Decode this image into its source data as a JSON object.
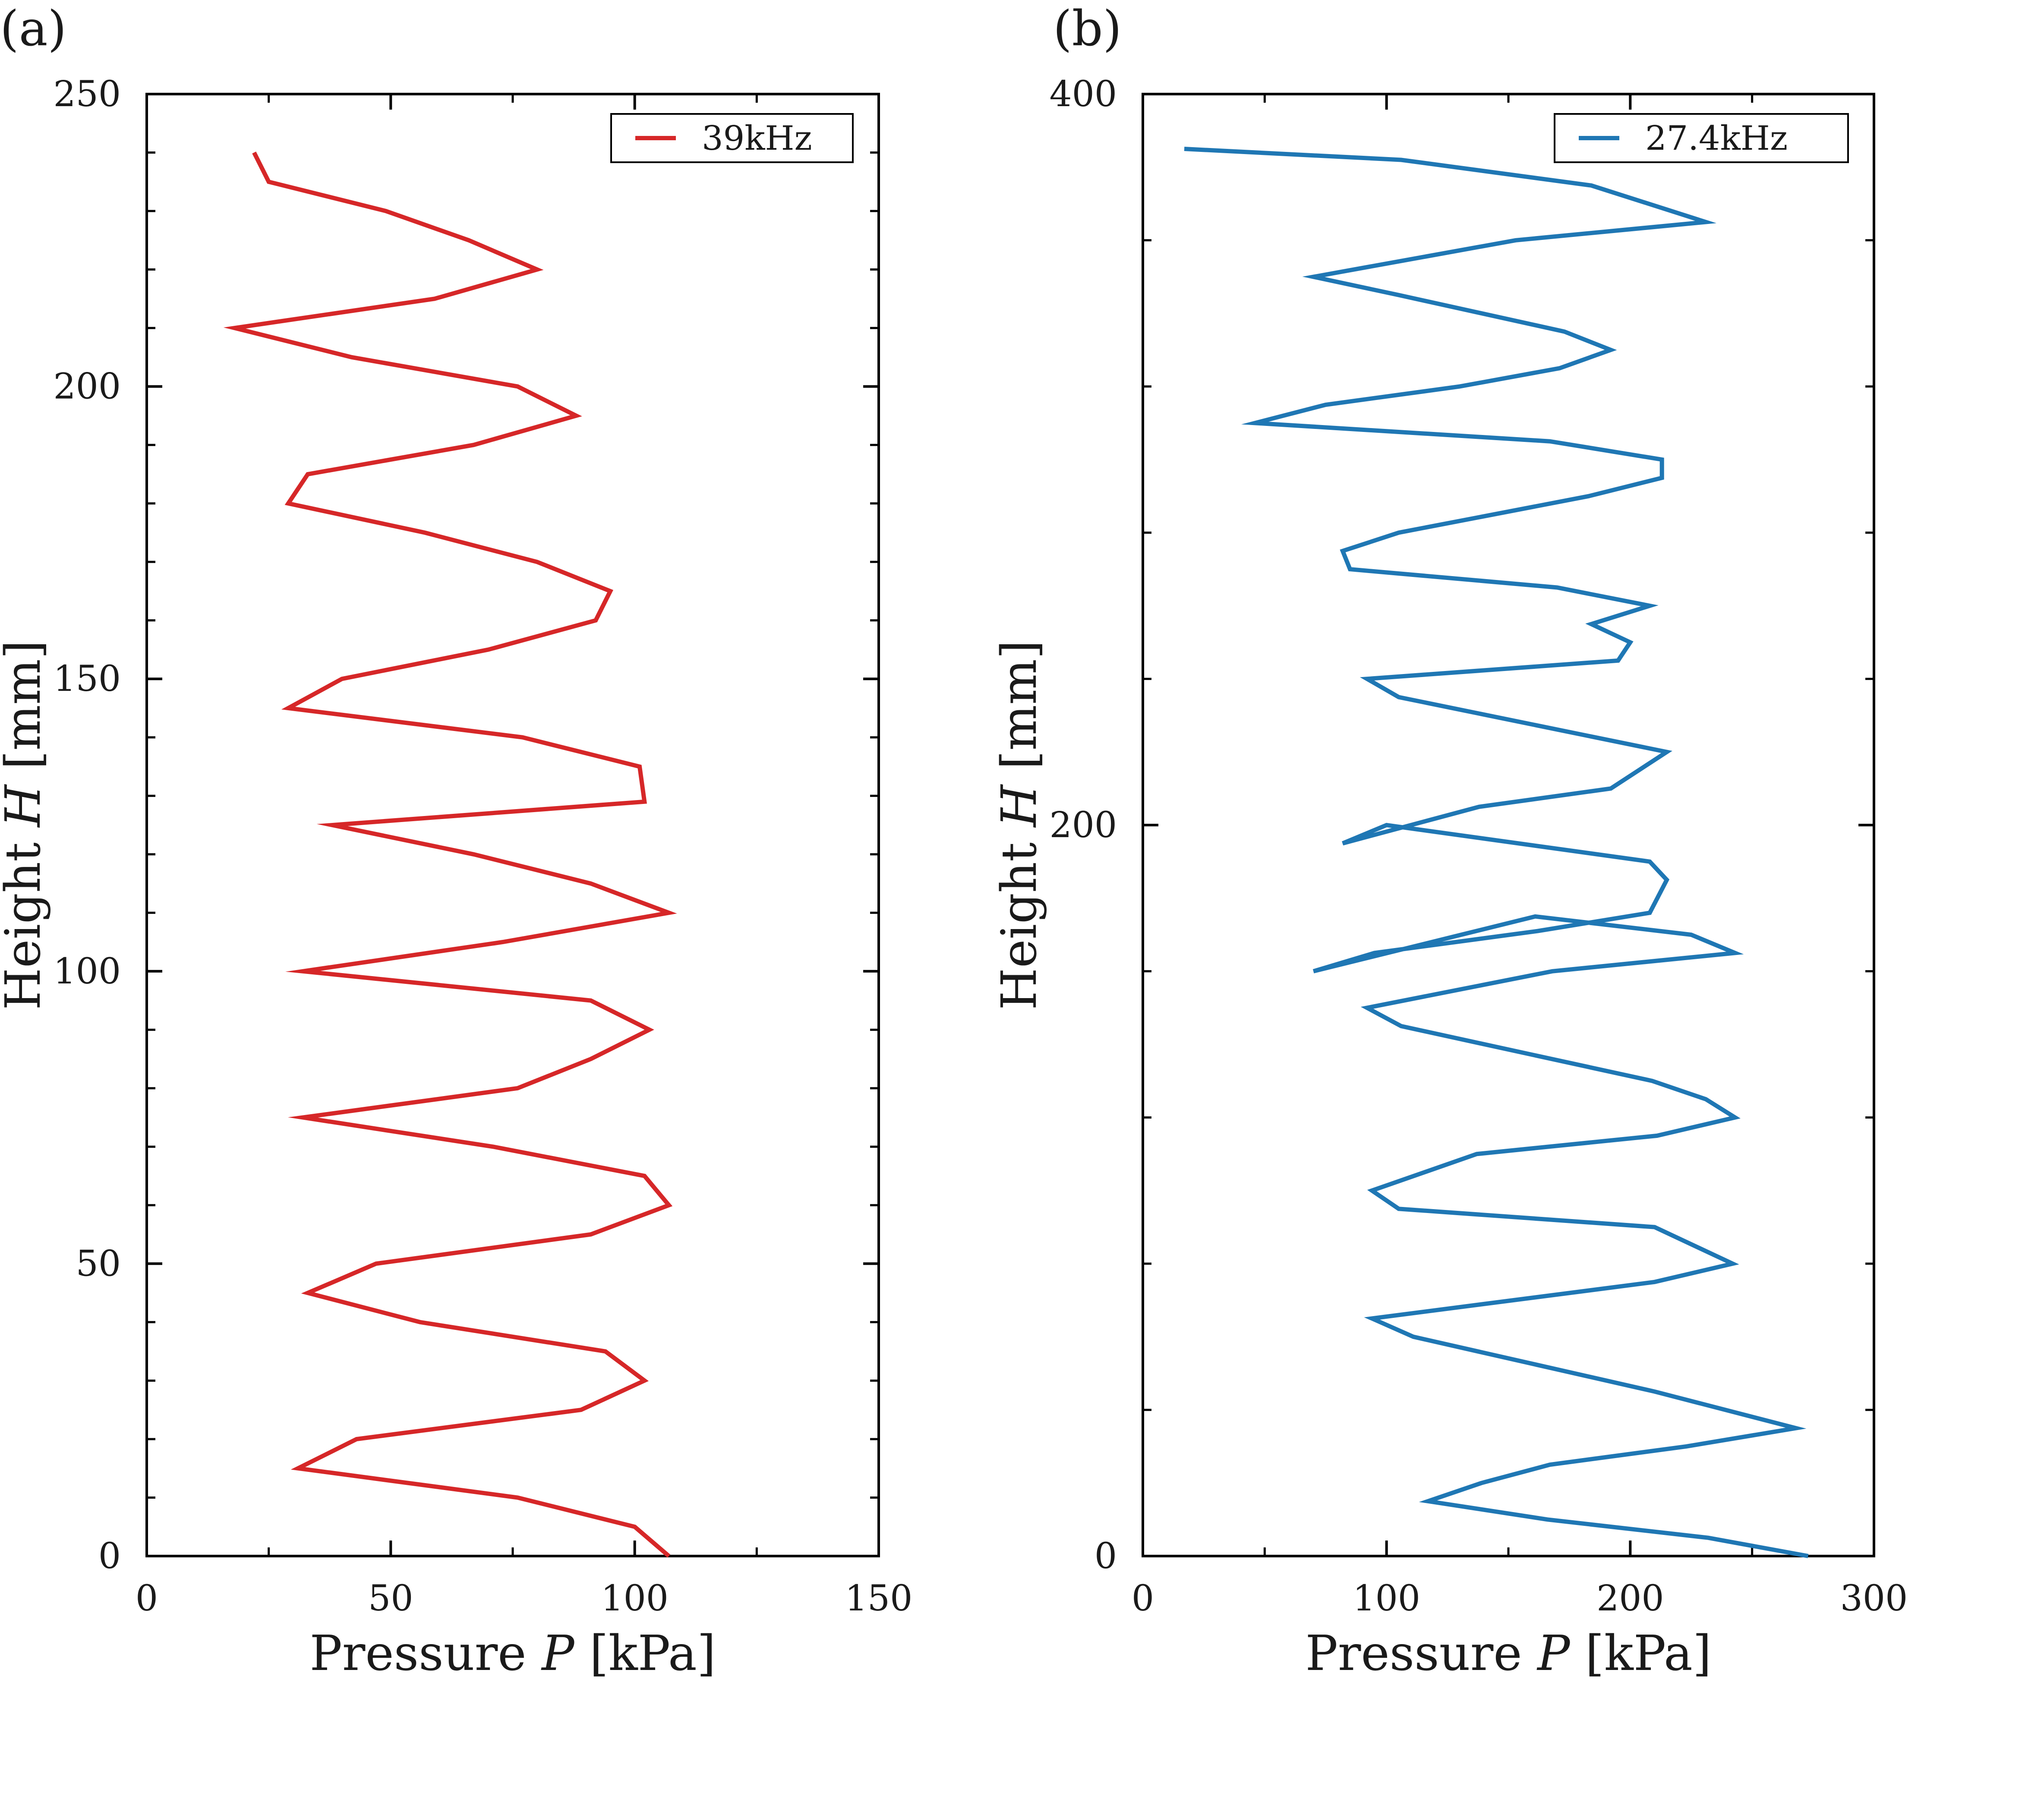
{
  "chart_data": [
    {
      "panel_label": "(a)",
      "type": "line",
      "xlabel": "Pressure P [kPa]",
      "ylabel": "Height H [mm]",
      "xlim": [
        0,
        150
      ],
      "ylim": [
        0,
        250
      ],
      "xticks": [
        0,
        50,
        100,
        150
      ],
      "yticks": [
        0,
        50,
        100,
        150,
        200,
        250
      ],
      "x_minor_step": 25,
      "y_minor_step": 10,
      "grid": false,
      "legend_position": "top-right",
      "series": [
        {
          "name": "39kHz",
          "color": "#d62728",
          "points": [
            [
              107,
              0
            ],
            [
              100,
              5
            ],
            [
              76,
              10
            ],
            [
              31,
              15
            ],
            [
              43,
              20
            ],
            [
              89,
              25
            ],
            [
              102,
              30
            ],
            [
              94,
              35
            ],
            [
              56,
              40
            ],
            [
              33,
              45
            ],
            [
              47,
              50
            ],
            [
              91,
              55
            ],
            [
              107,
              60
            ],
            [
              102,
              65
            ],
            [
              71,
              70
            ],
            [
              32,
              75
            ],
            [
              76,
              80
            ],
            [
              91,
              85
            ],
            [
              103,
              90
            ],
            [
              91,
              95
            ],
            [
              32,
              100
            ],
            [
              73,
              105
            ],
            [
              107,
              110
            ],
            [
              91,
              115
            ],
            [
              67,
              120
            ],
            [
              38,
              125
            ],
            [
              102,
              129
            ],
            [
              101,
              135
            ],
            [
              77,
              140
            ],
            [
              29,
              145
            ],
            [
              40,
              150
            ],
            [
              70,
              155
            ],
            [
              92,
              160
            ],
            [
              95,
              165
            ],
            [
              80,
              170
            ],
            [
              57,
              175
            ],
            [
              29,
              180
            ],
            [
              33,
              185
            ],
            [
              67,
              190
            ],
            [
              88,
              195
            ],
            [
              76,
              200
            ],
            [
              42,
              205
            ],
            [
              18,
              210
            ],
            [
              59,
              215
            ],
            [
              80,
              220
            ],
            [
              66,
              225
            ],
            [
              49,
              230
            ],
            [
              25,
              235
            ],
            [
              22,
              240
            ]
          ]
        }
      ]
    },
    {
      "panel_label": "(b)",
      "type": "line",
      "xlabel": "Pressure P [kPa]",
      "ylabel": "Height H [mm]",
      "xlim": [
        0,
        300
      ],
      "ylim": [
        0,
        400
      ],
      "xticks": [
        0,
        100,
        200,
        300
      ],
      "yticks": [
        0,
        200,
        400
      ],
      "y_minor_ticks": [
        40,
        80,
        120,
        160,
        240,
        280,
        320,
        360
      ],
      "x_minor_step": 50,
      "grid": false,
      "legend_position": "top-right",
      "series": [
        {
          "name": "27.4kHz",
          "color": "#1f77b4",
          "points": [
            [
              273,
              0
            ],
            [
              232,
              5
            ],
            [
              166,
              10
            ],
            [
              117,
              15
            ],
            [
              139,
              20
            ],
            [
              167,
              25
            ],
            [
              223,
              30
            ],
            [
              268,
              35
            ],
            [
              210,
              45
            ],
            [
              111,
              60
            ],
            [
              94,
              65
            ],
            [
              210,
              75
            ],
            [
              242,
              80
            ],
            [
              210,
              90
            ],
            [
              105,
              95
            ],
            [
              94,
              100
            ],
            [
              137,
              110
            ],
            [
              211,
              115
            ],
            [
              243,
              120
            ],
            [
              231,
              125
            ],
            [
              209,
              130
            ],
            [
              106,
              145
            ],
            [
              92,
              150
            ],
            [
              168,
              160
            ],
            [
              243,
              165
            ],
            [
              225,
              170
            ],
            [
              161,
              175
            ],
            [
              70,
              160
            ],
            [
              95,
              165
            ],
            [
              162,
              171
            ],
            [
              208,
              176
            ],
            [
              215,
              185
            ],
            [
              208,
              190
            ],
            [
              100,
              200
            ],
            [
              82,
              195
            ],
            [
              138,
              205
            ],
            [
              192,
              210
            ],
            [
              215,
              220
            ],
            [
              105,
              235
            ],
            [
              92,
              240
            ],
            [
              195,
              245
            ],
            [
              200,
              250
            ],
            [
              184,
              255
            ],
            [
              208,
              260
            ],
            [
              170,
              265
            ],
            [
              85,
              270
            ],
            [
              82,
              275
            ],
            [
              105,
              280
            ],
            [
              183,
              290
            ],
            [
              213,
              295
            ],
            [
              213,
              300
            ],
            [
              167,
              305
            ],
            [
              46,
              310
            ],
            [
              75,
              315
            ],
            [
              130,
              320
            ],
            [
              171,
              325
            ],
            [
              192,
              330
            ],
            [
              173,
              335
            ],
            [
              105,
              345
            ],
            [
              70,
              350
            ],
            [
              153,
              360
            ],
            [
              231,
              365
            ],
            [
              184,
              375
            ],
            [
              106,
              382
            ],
            [
              17,
              385
            ]
          ]
        }
      ]
    }
  ]
}
